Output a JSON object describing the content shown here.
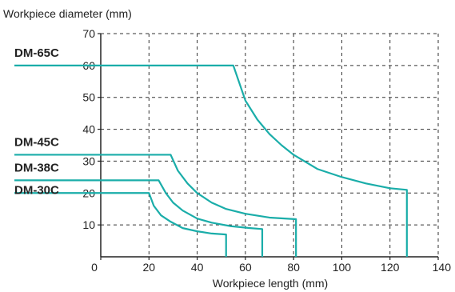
{
  "chart_data": {
    "type": "line",
    "title": "",
    "xlabel": "Workpiece length (mm)",
    "ylabel": "Workpiece diameter (mm)",
    "xlim": [
      0,
      140
    ],
    "ylim": [
      0,
      70
    ],
    "xticks": [
      0,
      20,
      40,
      60,
      80,
      100,
      120,
      140
    ],
    "yticks": [
      10,
      20,
      30,
      40,
      50,
      60,
      70
    ],
    "grid": true,
    "line_color": "#1aada9",
    "series": [
      {
        "name": "DM-65C",
        "x": [
          0,
          55,
          60,
          65,
          70,
          75,
          80,
          90,
          100,
          110,
          120,
          127,
          127
        ],
        "y": [
          60,
          60,
          49,
          43,
          38.5,
          35,
          32,
          27.5,
          25,
          23,
          21.5,
          21,
          0
        ]
      },
      {
        "name": "DM-45C",
        "x": [
          0,
          29,
          32,
          36,
          40,
          46,
          52,
          60,
          70,
          81,
          81
        ],
        "y": [
          32,
          32,
          27,
          23,
          20,
          17,
          15,
          13.5,
          12.3,
          11.8,
          0
        ]
      },
      {
        "name": "DM-38C",
        "x": [
          0,
          24,
          27,
          30,
          34,
          40,
          46,
          54,
          62,
          67,
          67
        ],
        "y": [
          24,
          24,
          20,
          17,
          14.5,
          12,
          10.7,
          9.6,
          9,
          8.7,
          0
        ]
      },
      {
        "name": "DM-30C",
        "x": [
          0,
          20,
          22,
          25,
          29,
          34,
          40,
          46,
          52,
          52
        ],
        "y": [
          20,
          20,
          16,
          13,
          11,
          9,
          8,
          7.3,
          7,
          0
        ]
      }
    ],
    "series_label_y": [
      64,
      36,
      28,
      21
    ]
  }
}
